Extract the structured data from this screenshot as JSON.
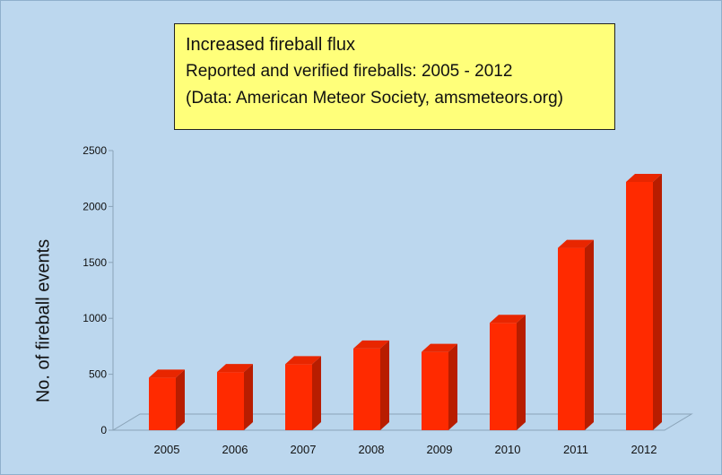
{
  "title_box": {
    "line1": "Increased fireball flux",
    "line2": "Reported and verified fireballs: 2005 - 2012",
    "line3": "(Data: American Meteor Society, amsmeteors.org)"
  },
  "chart_data": {
    "type": "bar",
    "title": "Increased fireball flux",
    "subtitle": "Reported and verified fireballs: 2005 - 2012",
    "note": "(Data: American Meteor Society, amsmeteors.org)",
    "xlabel": "",
    "ylabel": "No. of fireball events",
    "categories": [
      "2005",
      "2006",
      "2007",
      "2008",
      "2009",
      "2010",
      "2011",
      "2012"
    ],
    "values": [
      470,
      520,
      590,
      730,
      700,
      960,
      1630,
      2220
    ],
    "ylim": [
      0,
      2500
    ],
    "yticks": [
      "0",
      "500",
      "1000",
      "1500",
      "2000",
      "2500"
    ],
    "grid": false,
    "legend": "none",
    "colors": {
      "bar_front": "#ff2a00",
      "bar_side": "#b81d00",
      "bar_top": "#e82600",
      "background": "#bcd7ee",
      "title_box": "#ffff7a"
    }
  }
}
